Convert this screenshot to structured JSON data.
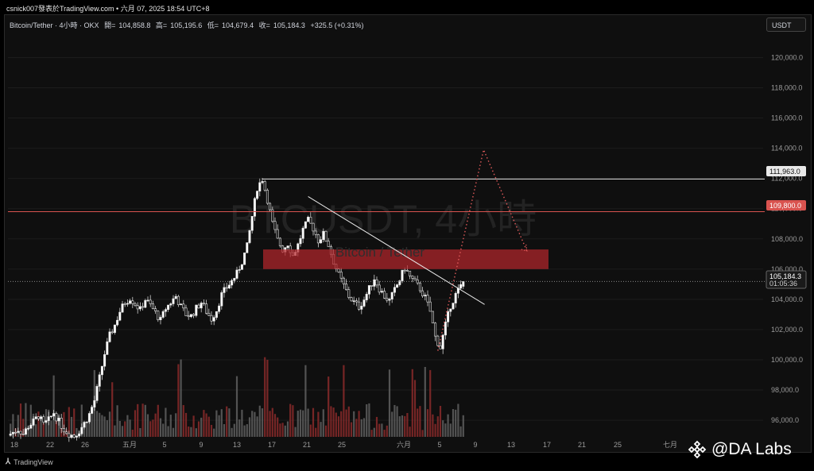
{
  "header": {
    "text": "csnick007發表於TradingView.com • 六月 07, 2025 18:54 UTC+8"
  },
  "symbol": {
    "title": "Bitcoin/Tether · 4小時 · OKX",
    "open_label": "開",
    "open": "104,858.8",
    "high_label": "高",
    "high": "105,195.6",
    "low_label": "低",
    "low": "104,679.4",
    "close_label": "收",
    "close": "105,184.3",
    "change": "+325.5 (+0.31%)"
  },
  "currency": "USDT",
  "watermark": {
    "big": "BTCUSDT, 4小時",
    "small": "Bitcoin / Tether"
  },
  "footer": {
    "brand": "TradingView"
  },
  "brand_overlay": {
    "text": "@DA Labs"
  },
  "price_tags": {
    "resistance": "111,963.0",
    "red_level": "109,800.0",
    "last_price": "105,184.3",
    "countdown": "01:05:36"
  },
  "colors": {
    "up": "#ffffff",
    "down": "#ffffff",
    "resistance_line": "#e0e0e0",
    "red_level": "#d9534f",
    "zone": "#b3262b",
    "projection": "#e05a5a",
    "volume_up": "#5f5f5f",
    "volume_down": "#8a2a2a"
  },
  "chart_data": {
    "type": "candlestick",
    "symbol": "Bitcoin/Tether",
    "timeframe": "4小時",
    "exchange": "OKX",
    "ylim": [
      94900,
      121600
    ],
    "y_ticks": [
      96000,
      98000,
      100000,
      102000,
      104000,
      106000,
      108000,
      110000,
      112000,
      114000,
      116000,
      118000,
      120000
    ],
    "y_tick_labels": [
      "96,000.0",
      "98,000.0",
      "100,000.0",
      "102,000.0",
      "104,000.0",
      "106,000.0",
      "108,000.0",
      "110,000.0",
      "112,000.0",
      "114,000.0",
      "116,000.0",
      "118,000.0",
      "120,000.0"
    ],
    "x_ticks": [
      "18",
      "22",
      "26",
      "五月",
      "5",
      "9",
      "13",
      "17",
      "21",
      "25",
      "六月",
      "5",
      "9",
      "13",
      "17",
      "21",
      "25",
      "七月"
    ],
    "price_path": [
      [
        0,
        95000
      ],
      [
        2,
        95200
      ],
      [
        4,
        95400
      ],
      [
        6,
        95100
      ],
      [
        8,
        95600
      ],
      [
        10,
        95900
      ],
      [
        12,
        96300
      ],
      [
        14,
        95700
      ],
      [
        16,
        96000
      ],
      [
        18,
        96500
      ],
      [
        20,
        95900
      ],
      [
        22,
        95400
      ],
      [
        24,
        95100
      ],
      [
        26,
        94950
      ],
      [
        28,
        95300
      ],
      [
        30,
        95800
      ],
      [
        32,
        96400
      ],
      [
        34,
        97300
      ],
      [
        36,
        98800
      ],
      [
        38,
        100400
      ],
      [
        40,
        101600
      ],
      [
        42,
        102300
      ],
      [
        44,
        103200
      ],
      [
        46,
        103800
      ],
      [
        48,
        104100
      ],
      [
        50,
        103700
      ],
      [
        52,
        103300
      ],
      [
        54,
        104000
      ],
      [
        56,
        103600
      ],
      [
        58,
        103100
      ],
      [
        60,
        102600
      ],
      [
        62,
        103400
      ],
      [
        64,
        103800
      ],
      [
        66,
        104200
      ],
      [
        68,
        103500
      ],
      [
        70,
        103000
      ],
      [
        72,
        102900
      ],
      [
        74,
        103400
      ],
      [
        76,
        103800
      ],
      [
        78,
        103200
      ],
      [
        80,
        102700
      ],
      [
        82,
        103300
      ],
      [
        84,
        104300
      ],
      [
        86,
        104800
      ],
      [
        88,
        105200
      ],
      [
        90,
        105700
      ],
      [
        92,
        106500
      ],
      [
        94,
        107500
      ],
      [
        96,
        109500
      ],
      [
        98,
        111400
      ],
      [
        100,
        111963
      ],
      [
        102,
        110600
      ],
      [
        104,
        109000
      ],
      [
        106,
        107900
      ],
      [
        108,
        107300
      ],
      [
        110,
        107700
      ],
      [
        112,
        106900
      ],
      [
        114,
        107600
      ],
      [
        116,
        108600
      ],
      [
        118,
        109200
      ],
      [
        120,
        108700
      ],
      [
        122,
        107900
      ],
      [
        124,
        108300
      ],
      [
        126,
        107600
      ],
      [
        128,
        106500
      ],
      [
        130,
        105600
      ],
      [
        132,
        104900
      ],
      [
        134,
        104200
      ],
      [
        136,
        103800
      ],
      [
        138,
        103500
      ],
      [
        140,
        104000
      ],
      [
        142,
        104700
      ],
      [
        144,
        105400
      ],
      [
        146,
        104700
      ],
      [
        148,
        104200
      ],
      [
        150,
        103900
      ],
      [
        152,
        104600
      ],
      [
        154,
        105300
      ],
      [
        156,
        106100
      ],
      [
        158,
        105500
      ],
      [
        160,
        105100
      ],
      [
        162,
        104700
      ],
      [
        164,
        104100
      ],
      [
        166,
        103200
      ],
      [
        168,
        101500
      ],
      [
        170,
        100800
      ],
      [
        172,
        102300
      ],
      [
        174,
        103600
      ],
      [
        176,
        104300
      ],
      [
        178,
        104858.8
      ],
      [
        179,
        105184.3
      ]
    ],
    "last": {
      "open": 104858.8,
      "high": 105195.6,
      "low": 104679.4,
      "close": 105184.3,
      "change": 325.5,
      "change_pct": 0.31
    },
    "horizontal_levels": [
      {
        "price": 111963.0,
        "label": "111,963.0",
        "color": "#e0e0e0"
      },
      {
        "price": 109800.0,
        "label": "109,800.0",
        "color": "#d9534f"
      },
      {
        "price": 105184.3,
        "label": "105,184.3",
        "style": "dotted"
      }
    ],
    "zone": {
      "price_low": 106000,
      "price_high": 107300,
      "color": "#b3262b"
    },
    "trendline": {
      "from": [
        118,
        110800
      ],
      "to": [
        178,
        103400
      ]
    },
    "projection": [
      [
        169,
        100600
      ],
      [
        187,
        113900
      ],
      [
        204,
        107200
      ]
    ],
    "volume_scale_max": 1
  }
}
